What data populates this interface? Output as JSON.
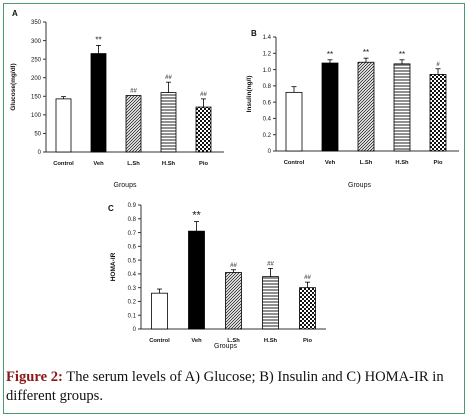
{
  "chart_data": [
    {
      "type": "bar",
      "panel_label": "A",
      "categories": [
        "Control",
        "Veh",
        "L.Sh",
        "H.Sh",
        "Pio"
      ],
      "values": [
        143,
        265,
        152,
        160,
        121
      ],
      "errors": [
        6,
        22,
        0,
        28,
        22
      ],
      "annotations": [
        "",
        "**",
        "##",
        "##",
        "##"
      ],
      "xlabel": "Groups",
      "ylabel": "Glucose(mg/dl)",
      "ylim": [
        0,
        350
      ],
      "yticks": [
        "0",
        "50",
        "100",
        "150",
        "200",
        "250",
        "300",
        "350"
      ],
      "fills": [
        "white",
        "black",
        "diagonal",
        "horizontal",
        "checker"
      ]
    },
    {
      "type": "bar",
      "panel_label": "B",
      "categories": [
        "Control",
        "Veh",
        "L.Sh",
        "H.Sh",
        "Pio"
      ],
      "values": [
        0.72,
        1.08,
        1.09,
        1.07,
        0.94
      ],
      "errors": [
        0.07,
        0.04,
        0.05,
        0.05,
        0.07
      ],
      "annotations": [
        "",
        "**",
        "**",
        "**",
        "#"
      ],
      "xlabel": "Groups",
      "ylabel": "Insulin(ng/l)",
      "ylim": [
        0,
        1.4
      ],
      "yticks": [
        "0",
        "0.2",
        "0.4",
        "0.6",
        "0.8",
        "1.0",
        "1.2",
        "1.4"
      ],
      "fills": [
        "white",
        "black",
        "diagonal",
        "horizontal",
        "checker"
      ]
    },
    {
      "type": "bar",
      "panel_label": "C",
      "categories": [
        "Control",
        "Veh",
        "L.Sh",
        "H.Sh",
        "Pio"
      ],
      "values": [
        0.26,
        0.71,
        0.41,
        0.38,
        0.3
      ],
      "errors": [
        0.03,
        0.07,
        0.02,
        0.06,
        0.04
      ],
      "annotations": [
        "",
        "**",
        "##",
        "##",
        "##"
      ],
      "xlabel": "Groups",
      "ylabel": "HOMA-IR",
      "ylim": [
        0,
        0.9
      ],
      "yticks": [
        "0",
        "0.1",
        "0.2",
        "0.3",
        "0.4",
        "0.5",
        "0.6",
        "0.7",
        "0.8",
        "0.9"
      ],
      "fills": [
        "white",
        "black",
        "diagonal",
        "horizontal",
        "checker"
      ]
    }
  ],
  "caption": {
    "label": "Figure 2:",
    "text": "The serum levels of A) Glucose; B) Insulin and C) HOMA-IR in different groups."
  },
  "colors": {
    "border": "#4a9a6f",
    "caption_label": "#8a1919",
    "axis": "#333333",
    "bar_stroke": "#000000"
  }
}
